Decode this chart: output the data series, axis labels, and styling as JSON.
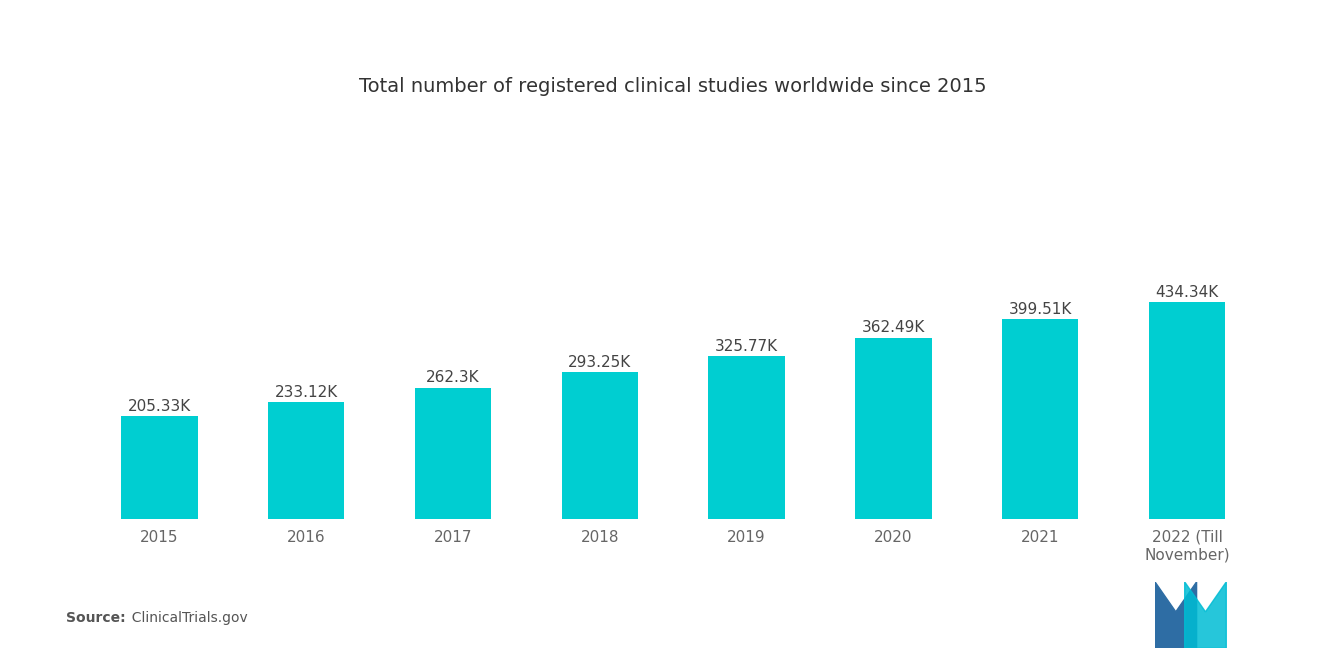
{
  "title": "Total number of registered clinical studies worldwide since 2015",
  "categories": [
    "2015",
    "2016",
    "2017",
    "2018",
    "2019",
    "2020",
    "2021",
    "2022 (Till\nNovember)"
  ],
  "values": [
    205.33,
    233.12,
    262.3,
    293.25,
    325.77,
    362.49,
    399.51,
    434.34
  ],
  "labels": [
    "205.33K",
    "233.12K",
    "262.3K",
    "293.25K",
    "325.77K",
    "362.49K",
    "399.51K",
    "434.34K"
  ],
  "bar_color": "#00CED1",
  "background_color": "#FFFFFF",
  "source_bold": "Source:",
  "source_rest": "  ClinicalTrials.gov",
  "title_fontsize": 14,
  "label_fontsize": 11,
  "tick_fontsize": 11,
  "source_fontsize": 10,
  "ylim": [
    0,
    800
  ],
  "bar_width": 0.52,
  "logo_blue": "#2E6DA4",
  "logo_teal": "#00BCD4"
}
